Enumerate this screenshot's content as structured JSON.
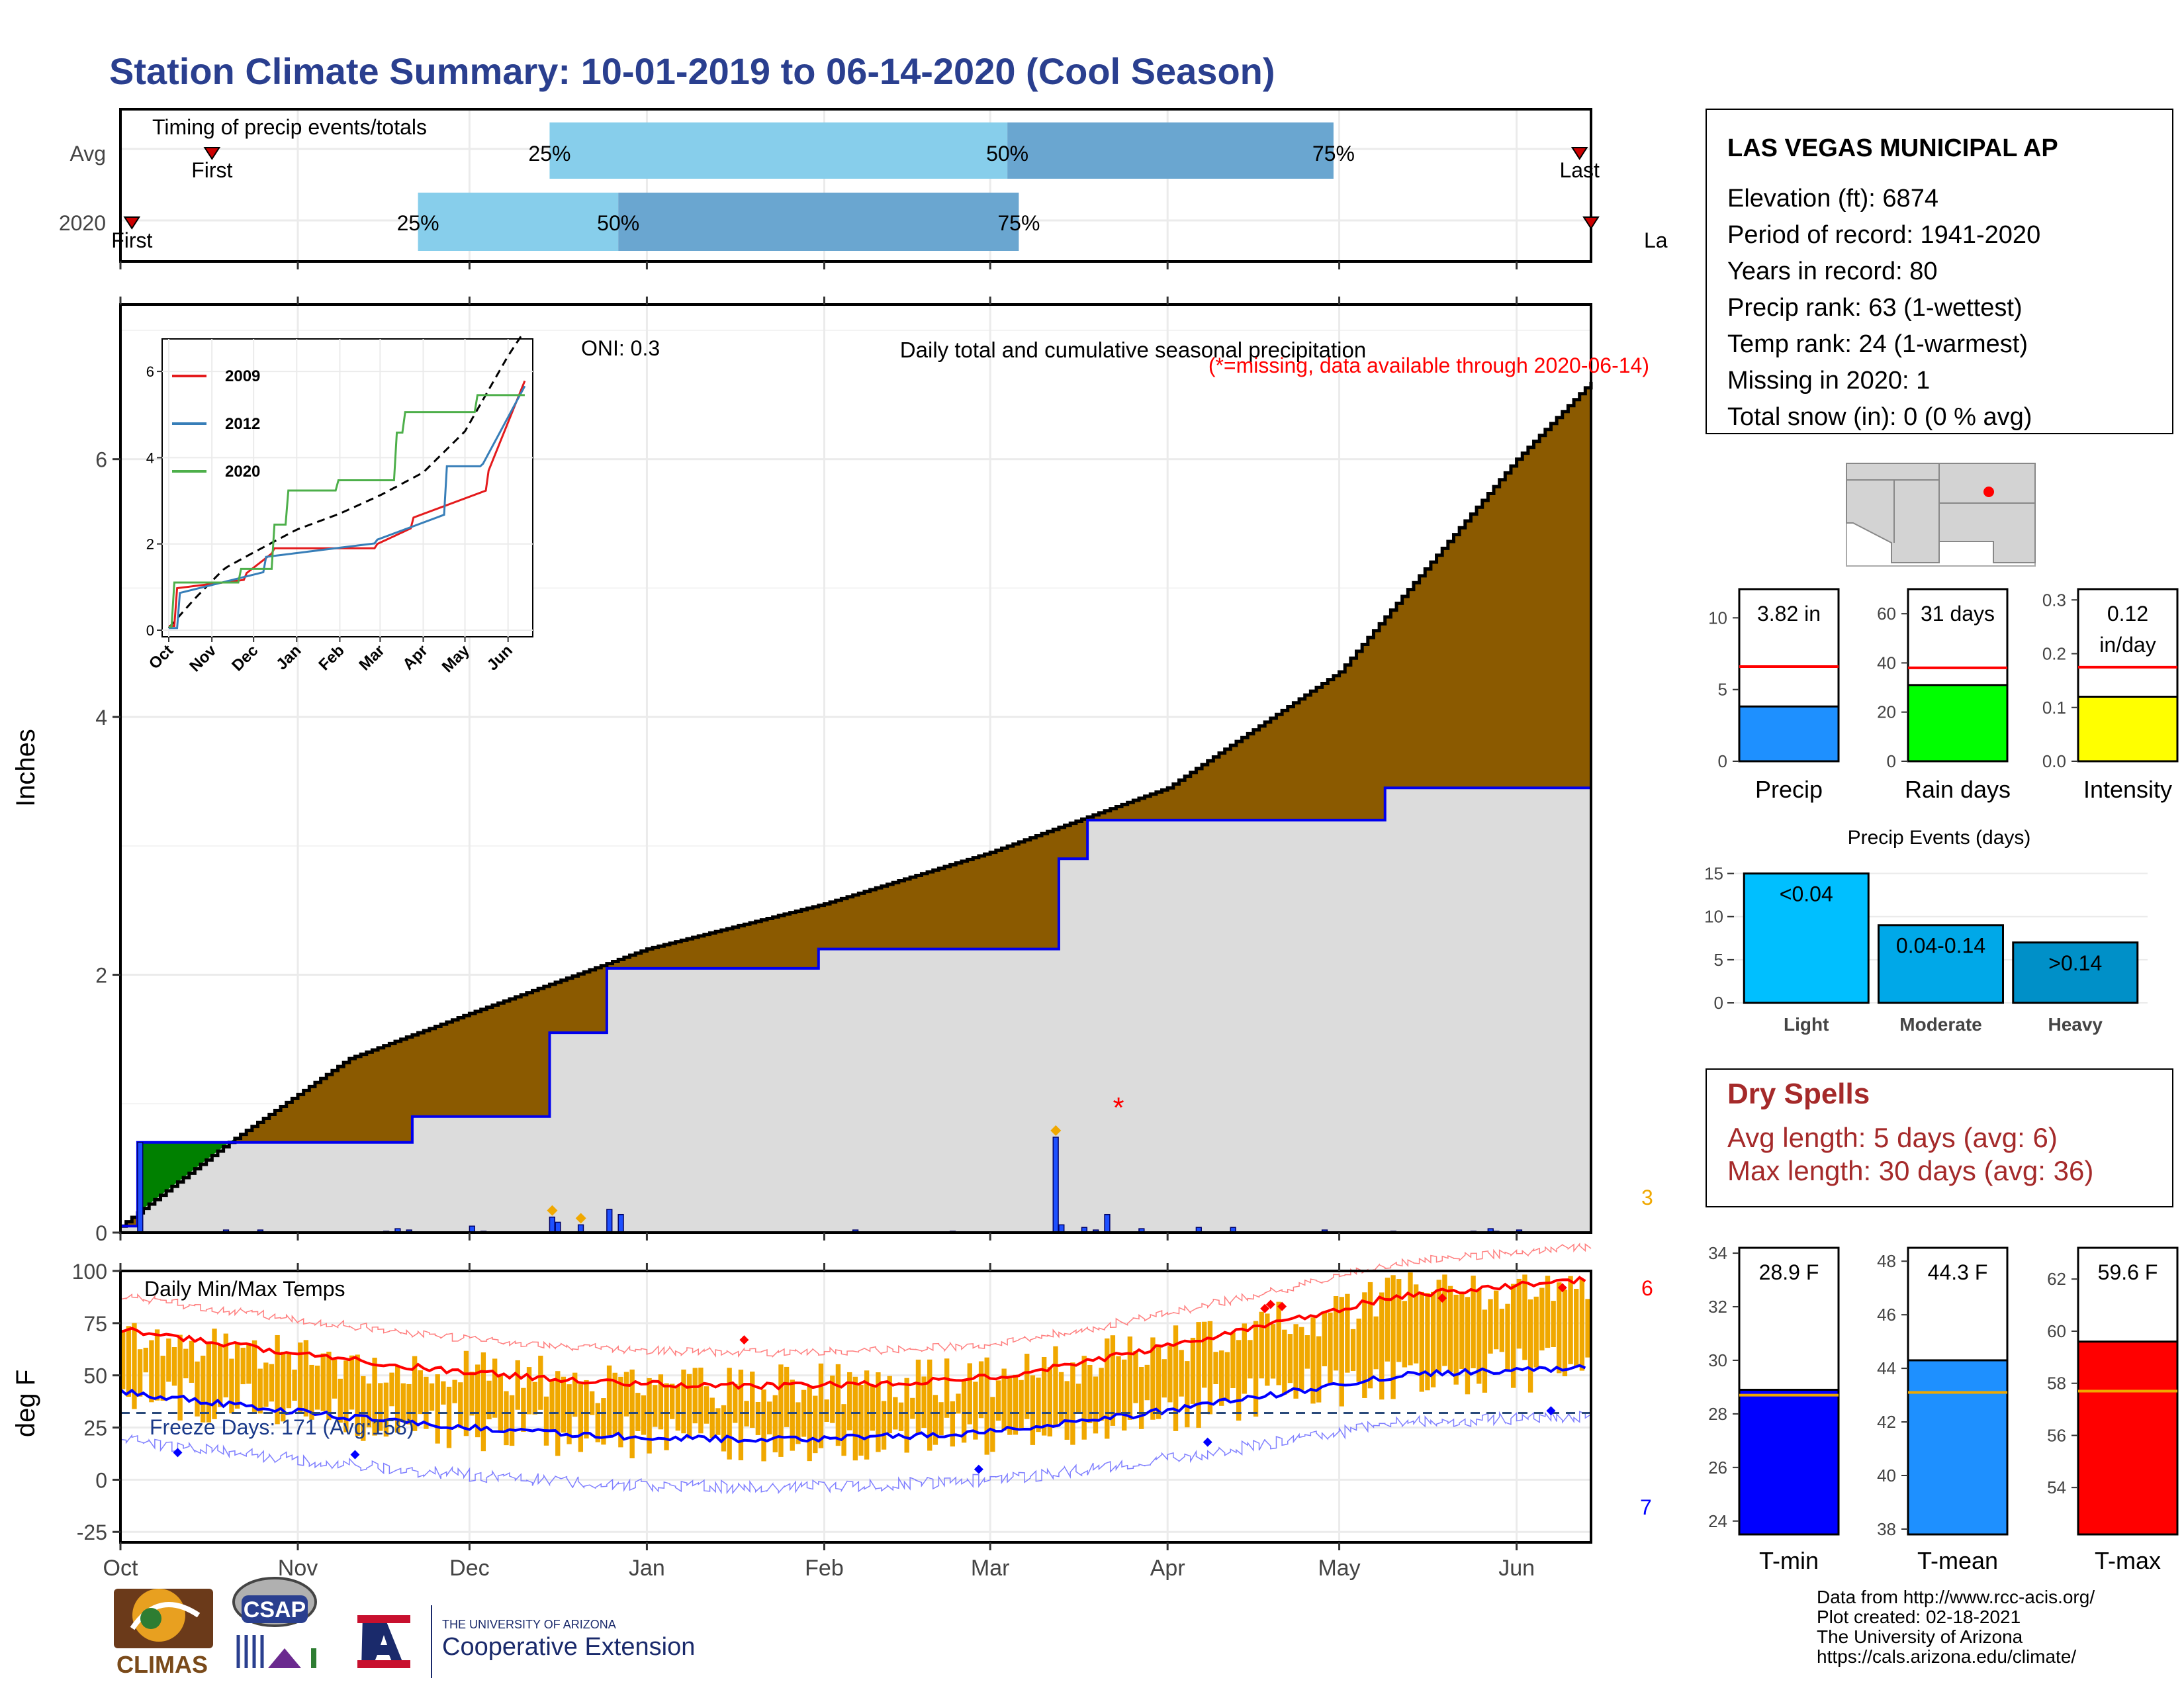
{
  "title": "Station Climate Summary: 10-01-2019 to 06-14-2020 (Cool Season)",
  "colors": {
    "title": "#2a3f8f",
    "cum_precip": "#8b5a00",
    "wet_excess": "#008000",
    "season_gray": "#dcdcdc",
    "blue_line": "#0000ee",
    "light_blue": "#87ceeb",
    "mid_blue": "#6aa6d0",
    "tmax": "#ff0000",
    "tmin": "#0000ff",
    "bar_orange": "#f0a800",
    "precip_bar": "#1e90ff",
    "rain_bar": "#00ff00",
    "intensity_bar": "#ffff00",
    "light_bar": "#00bfff",
    "moderate_bar": "#00a8e8",
    "heavy_bar": "#0090c8",
    "dry_spells": "#a52a2a"
  },
  "timing": {
    "label": "Timing of precip events/totals",
    "rows": [
      "Avg",
      "2020"
    ],
    "avg": {
      "first": "First",
      "last": "Last",
      "p25": "25%",
      "p50": "50%",
      "p75": "75%",
      "first_day": 2,
      "p25_day": 75,
      "p50_day": 155,
      "p75_day": 212,
      "last_day": 255
    },
    "y2020": {
      "first": "First",
      "last": "La",
      "p25": "25%",
      "p50": "50%",
      "p75": "75%",
      "first_day": 0,
      "p25_day": 52,
      "p50_day": 87,
      "p75_day": 157,
      "last_day": 268
    }
  },
  "months": [
    "Oct",
    "Nov",
    "Dec",
    "Jan",
    "Feb",
    "Mar",
    "Apr",
    "May",
    "Jun"
  ],
  "precip_panel": {
    "ylabel": "Inches",
    "yticks": [
      "0",
      "2",
      "4",
      "6"
    ],
    "oni": "ONI: 0.3",
    "subtitle": "Daily total and cumulative seasonal precipitation",
    "missing_note": "(*=missing, data available through 2020-06-14)",
    "missing_marker": "*",
    "corner_count": "3",
    "ylim": [
      0,
      7.2
    ]
  },
  "inset": {
    "yticks": [
      "0",
      "2",
      "4",
      "6"
    ],
    "xticks": [
      "Oct",
      "Nov",
      "Dec",
      "Jan",
      "Feb",
      "Mar",
      "Apr",
      "May",
      "Jun"
    ],
    "legend": [
      "2009",
      "2012",
      "2020"
    ]
  },
  "temp_panel": {
    "ylabel": "deg F",
    "title": "Daily Min/Max Temps",
    "freeze_text": "Freeze Days: 171 (Avg:158)",
    "yticks": [
      "100",
      "75",
      "50",
      "25",
      "0",
      "-25"
    ],
    "corner_top": "6",
    "corner_bottom": "7",
    "ylim": [
      -30,
      100
    ]
  },
  "station": {
    "name": "LAS VEGAS MUNICIPAL AP",
    "lines": [
      "Elevation (ft): 6874",
      "Period of record: 1941-2020",
      "Years in record: 80",
      "Precip rank: 63 (1-wettest)",
      "Temp rank: 24 (1-warmest)",
      "Missing in 2020: 1",
      "Total snow (in): 0 (0 % avg)"
    ]
  },
  "summary_bars": [
    {
      "label": "Precip",
      "value_text": "3.82 in",
      "value": 3.82,
      "avg": 6.6,
      "ymax": 12,
      "yticks": [
        "0",
        "5",
        "10"
      ],
      "ytick_vals": [
        0,
        5,
        10
      ],
      "color": "#1e90ff"
    },
    {
      "label": "Rain days",
      "value_text": "31 days",
      "value": 31,
      "avg": 38,
      "ymax": 70,
      "yticks": [
        "0",
        "20",
        "40",
        "60"
      ],
      "ytick_vals": [
        0,
        20,
        40,
        60
      ],
      "color": "#00ff00"
    },
    {
      "label": "Intensity",
      "value_text": "0.12 in/day",
      "value_line1": "0.12",
      "value_line2": "in/day",
      "value": 0.12,
      "avg": 0.175,
      "ymax": 0.32,
      "yticks": [
        "0.0",
        "0.1",
        "0.2",
        "0.3"
      ],
      "ytick_vals": [
        0,
        0.1,
        0.2,
        0.3
      ],
      "color": "#ffff00"
    }
  ],
  "precip_events": {
    "title": "Precip Events (days)",
    "categories": [
      "Light",
      "Moderate",
      "Heavy"
    ],
    "bar_labels": [
      "<0.04",
      "0.04-0.14",
      ">0.14"
    ],
    "values": [
      15,
      9,
      7
    ],
    "yticks": [
      "0",
      "5",
      "10",
      "15"
    ],
    "ymax": 16.5
  },
  "dry_spells": {
    "title": "Dry Spells",
    "avg_length": "Avg length: 5 days (avg: 6)",
    "max_length": "Max length: 30 days (avg: 36)"
  },
  "temp_bars": [
    {
      "label": "T-min",
      "value_text": "28.9 F",
      "value": 28.9,
      "avg": 28.7,
      "ymin": 23.5,
      "ymax": 34.2,
      "yticks": [
        "24",
        "26",
        "28",
        "30",
        "32",
        "34"
      ],
      "ytick_vals": [
        24,
        26,
        28,
        30,
        32,
        34
      ],
      "color": "#0000ff"
    },
    {
      "label": "T-mean",
      "value_text": "44.3 F",
      "value": 44.3,
      "avg": 43.1,
      "ymin": 37.8,
      "ymax": 48.5,
      "yticks": [
        "38",
        "40",
        "42",
        "44",
        "46",
        "48"
      ],
      "ytick_vals": [
        38,
        40,
        42,
        44,
        46,
        48
      ],
      "color": "#1e90ff"
    },
    {
      "label": "T-max",
      "value_text": "59.6 F",
      "value": 59.6,
      "avg": 57.7,
      "ymin": 52.2,
      "ymax": 63.2,
      "yticks": [
        "54",
        "56",
        "58",
        "60",
        "62"
      ],
      "ytick_vals": [
        54,
        56,
        58,
        60,
        62
      ],
      "color": "#ff0000"
    }
  ],
  "footer": {
    "lines": [
      "Data from http://www.rcc-acis.org/",
      "Plot created: 02-18-2021",
      "The University of Arizona",
      "https://cals.arizona.edu/climate/"
    ],
    "logo_climas": "CLIMAS",
    "logo_csap": "CSAP",
    "ua_small": "THE UNIVERSITY OF ARIZONA",
    "ua_big": "Cooperative Extension"
  },
  "chart_data": {
    "type": "area",
    "title": "Daily total and cumulative seasonal precipitation",
    "ylabel": "Inches",
    "ylim": [
      0,
      7.2
    ],
    "series": [
      {
        "name": "2020",
        "x": [
          "2019-10-01",
          "2019-10-04",
          "2019-10-19",
          "2019-11-21",
          "2019-12-15",
          "2019-12-25",
          "2020-01-31",
          "2020-03-13",
          "2020-03-18",
          "2020-05-09",
          "2020-06-14"
        ],
        "values": [
          0.05,
          0.7,
          0.7,
          0.9,
          1.55,
          2.05,
          2.2,
          2.9,
          3.2,
          3.45,
          3.82
        ]
      },
      {
        "x": [
          "2019-10-01",
          "2019-10-20",
          "2019-11-10",
          "2019-12-01",
          "2020-01-01",
          "2020-02-01",
          "2020-03-01",
          "2020-04-01",
          "2020-05-01",
          "2020-06-01",
          "2020-06-14"
        ],
        "values": [
          0.05,
          0.7,
          1.35,
          1.7,
          2.2,
          2.55,
          2.95,
          3.45,
          4.35,
          6.0,
          6.6
        ]
      }
    ]
  }
}
